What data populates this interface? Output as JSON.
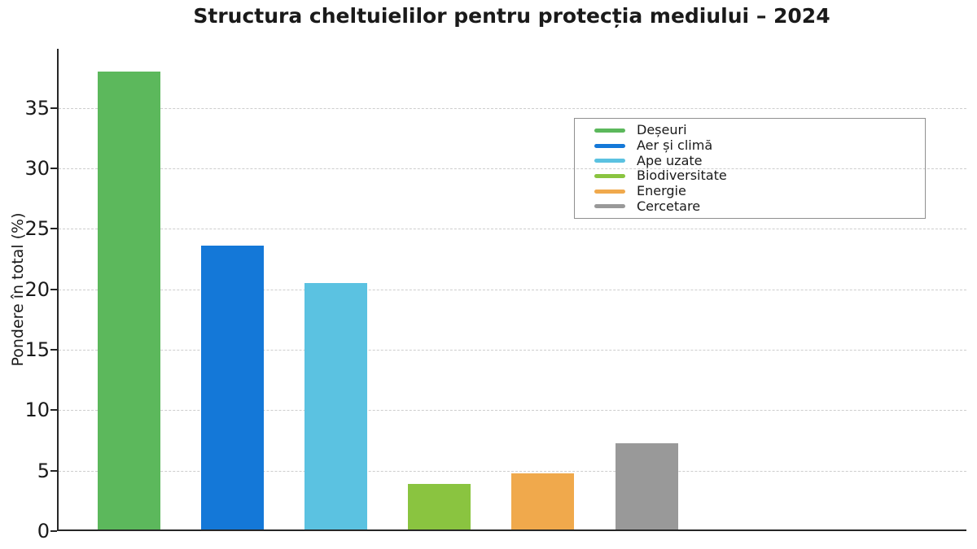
{
  "chart_data": {
    "type": "bar",
    "title": "Structura cheltuielilor pentru protecția mediului – 2024",
    "xlabel": "",
    "ylabel": "Pondere în total (%)",
    "categories": [
      "Deșeuri",
      "Aer și climă",
      "Ape uzate",
      "Biodiversitate",
      "Energie",
      "Cercetare"
    ],
    "values": [
      38.0,
      23.6,
      20.5,
      3.9,
      4.8,
      7.3
    ],
    "colors": [
      "#5cb85c",
      "#1478d8",
      "#5bc2e1",
      "#8ac440",
      "#f0a94c",
      "#999999"
    ],
    "ylim": [
      0,
      39.9
    ],
    "yticks": [
      0,
      5,
      10,
      15,
      20,
      25,
      30,
      35
    ],
    "grid": "horizontal-dashed",
    "grid_color": "#cdcdcd",
    "axis_color": "#262626",
    "legend_position": "upper-right",
    "x_tick_labels": []
  }
}
